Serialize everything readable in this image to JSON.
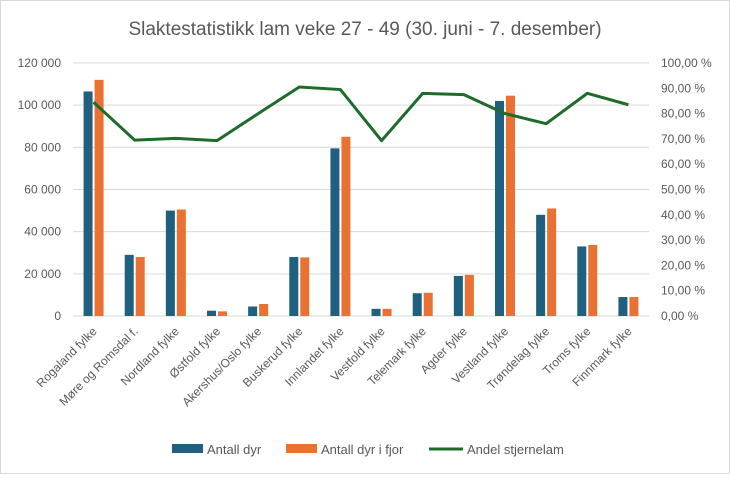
{
  "chart_data": {
    "type": "bar+line",
    "title": "Slaktestatistikk lam veke 27 - 49 (30. juni - 7. desember)",
    "categories": [
      "Rogaland fylke",
      "Møre og Romsdal f.",
      "Nordland fylke",
      "Østfold fylke",
      "Akershus/Oslo fylke",
      "Buskerud fylke",
      "Innlandet fylke",
      "Vestfold fylke",
      "Telemark fylke",
      "Agder fylke",
      "Vestland fylke",
      "Trøndelag fylke",
      "Troms fylke",
      "Finnmark fylke"
    ],
    "series": [
      {
        "name": "Antall dyr",
        "type": "bar",
        "axis": "left",
        "color": "#1f5f80",
        "values": [
          106500,
          29000,
          50000,
          2500,
          4500,
          28000,
          79500,
          3400,
          10800,
          19000,
          102000,
          48000,
          33000,
          9000
        ]
      },
      {
        "name": "Antall dyr i fjor",
        "type": "bar",
        "axis": "left",
        "color": "#e97132",
        "values": [
          112000,
          28000,
          50500,
          2200,
          5700,
          27800,
          85000,
          3400,
          11000,
          19500,
          104500,
          51000,
          33700,
          9000
        ]
      },
      {
        "name": "Andel stjernelam",
        "type": "line",
        "axis": "right",
        "color": "#1e6b2a",
        "values": [
          84.5,
          69.5,
          70.2,
          69.3,
          80.0,
          90.5,
          89.5,
          69.3,
          88.0,
          87.5,
          80.0,
          76.0,
          88.0,
          83.5
        ]
      }
    ],
    "y_left": {
      "ylim": [
        0,
        120000
      ],
      "ticks": [
        "0",
        "20 000",
        "40 000",
        "60 000",
        "80 000",
        "100 000",
        "120 000"
      ]
    },
    "y_right": {
      "ylim": [
        0,
        100
      ],
      "ticks": [
        "0,00 %",
        "10,00 %",
        "20,00 %",
        "30,00 %",
        "40,00 %",
        "50,00 %",
        "60,00 %",
        "70,00 %",
        "80,00 %",
        "90,00 %",
        "100,00 %"
      ]
    },
    "grid": true,
    "legend": "bottom"
  }
}
